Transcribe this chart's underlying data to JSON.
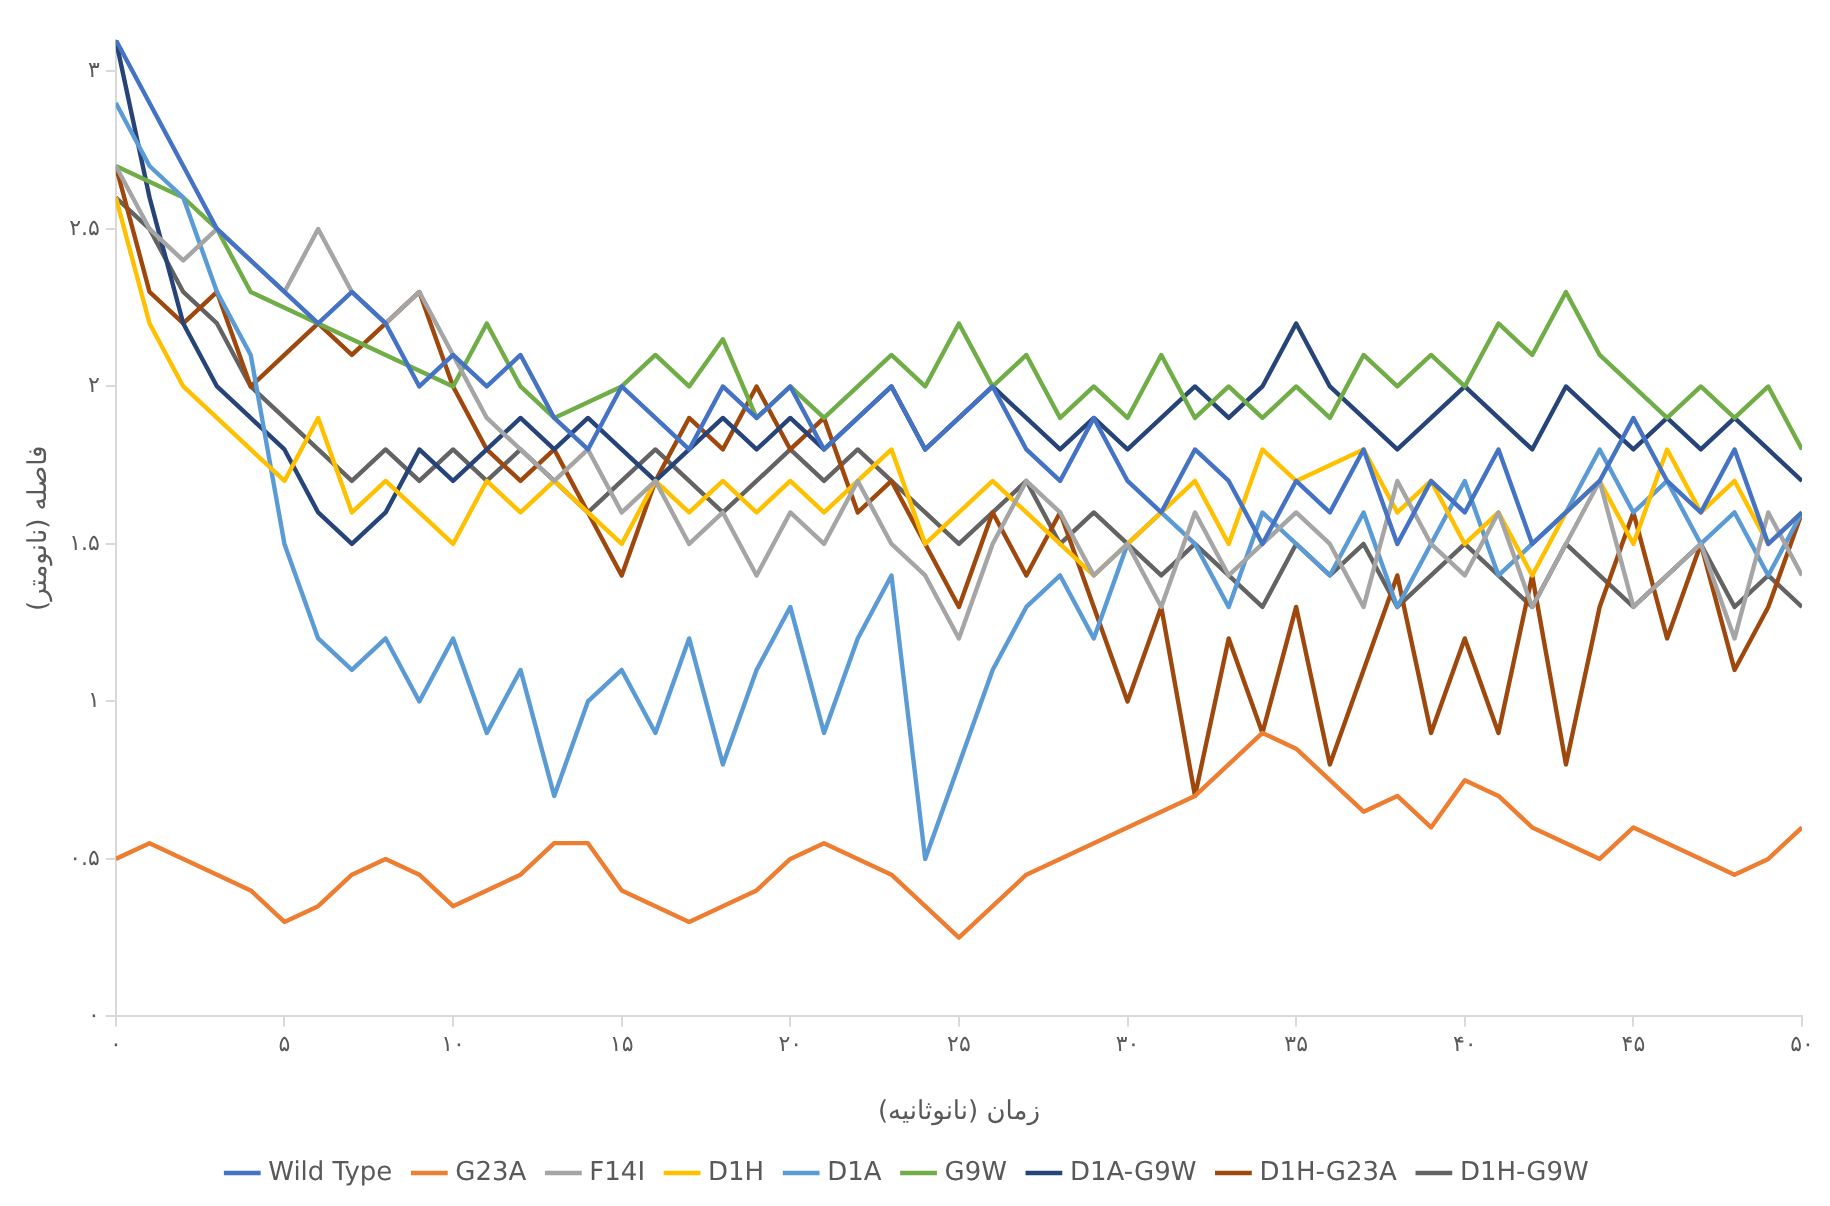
{
  "chart_data": {
    "type": "line",
    "xlabel": "زمان (نانوثانیه)",
    "ylabel": "فاصله (نانومتر)",
    "x": [
      0,
      1,
      2,
      3,
      4,
      5,
      6,
      7,
      8,
      9,
      10,
      11,
      12,
      13,
      14,
      15,
      16,
      17,
      18,
      19,
      20,
      21,
      22,
      23,
      24,
      25,
      26,
      27,
      28,
      29,
      30,
      31,
      32,
      33,
      34,
      35,
      36,
      37,
      38,
      39,
      40,
      41,
      42,
      43,
      44,
      45,
      46,
      47,
      48,
      49,
      50
    ],
    "xlim": [
      0,
      50
    ],
    "xticks": [
      {
        "value": 0,
        "label": "۰"
      },
      {
        "value": 5,
        "label": "۵"
      },
      {
        "value": 10,
        "label": "۱۰"
      },
      {
        "value": 15,
        "label": "۱۵"
      },
      {
        "value": 20,
        "label": "۲۰"
      },
      {
        "value": 25,
        "label": "۲۵"
      },
      {
        "value": 30,
        "label": "۳۰"
      },
      {
        "value": 35,
        "label": "۳۵"
      },
      {
        "value": 40,
        "label": "۴۰"
      },
      {
        "value": 45,
        "label": "۴۵"
      },
      {
        "value": 50,
        "label": "۵۰"
      }
    ],
    "ylim": [
      0,
      3.1
    ],
    "yticks": [
      {
        "value": 0,
        "label": "۰"
      },
      {
        "value": 0.5,
        "label": "۰.۵"
      },
      {
        "value": 1,
        "label": "۱"
      },
      {
        "value": 1.5,
        "label": "۱.۵"
      },
      {
        "value": 2,
        "label": "۲"
      },
      {
        "value": 2.5,
        "label": "۲.۵"
      },
      {
        "value": 3,
        "label": "۳"
      }
    ],
    "grid": false,
    "legend": "bottom",
    "marker": "none",
    "line_style": "solid",
    "series": [
      {
        "name": "Wild Type",
        "color": "#4472c4",
        "values": [
          3.1,
          2.9,
          2.7,
          2.5,
          2.4,
          2.3,
          2.2,
          2.3,
          2.2,
          2.0,
          2.1,
          2.0,
          2.1,
          1.9,
          1.8,
          2.0,
          1.9,
          1.8,
          2.0,
          1.9,
          2.0,
          1.8,
          1.9,
          2.0,
          1.8,
          1.9,
          2.0,
          1.8,
          1.7,
          1.9,
          1.7,
          1.6,
          1.8,
          1.7,
          1.5,
          1.7,
          1.6,
          1.8,
          1.5,
          1.7,
          1.6,
          1.8,
          1.5,
          1.6,
          1.7,
          1.9,
          1.7,
          1.6,
          1.8,
          1.5,
          1.6
        ]
      },
      {
        "name": "G23A",
        "color": "#ed7d31",
        "values": [
          0.5,
          0.55,
          0.5,
          0.45,
          0.4,
          0.3,
          0.35,
          0.45,
          0.5,
          0.45,
          0.35,
          0.4,
          0.45,
          0.55,
          0.55,
          0.4,
          0.35,
          0.3,
          0.35,
          0.4,
          0.5,
          0.55,
          0.5,
          0.45,
          0.35,
          0.25,
          0.35,
          0.45,
          0.5,
          0.55,
          0.6,
          0.65,
          0.7,
          0.8,
          0.9,
          0.85,
          0.75,
          0.65,
          0.7,
          0.6,
          0.75,
          0.7,
          0.6,
          0.55,
          0.5,
          0.6,
          0.55,
          0.5,
          0.45,
          0.5,
          0.6
        ]
      },
      {
        "name": "F14I",
        "color": "#a5a5a5",
        "values": [
          2.7,
          2.5,
          2.4,
          2.5,
          2.4,
          2.3,
          2.5,
          2.3,
          2.2,
          2.3,
          2.1,
          1.9,
          1.8,
          1.7,
          1.8,
          1.6,
          1.7,
          1.5,
          1.6,
          1.4,
          1.6,
          1.5,
          1.7,
          1.5,
          1.4,
          1.2,
          1.5,
          1.7,
          1.6,
          1.4,
          1.5,
          1.3,
          1.6,
          1.4,
          1.5,
          1.6,
          1.5,
          1.3,
          1.7,
          1.5,
          1.4,
          1.6,
          1.3,
          1.5,
          1.7,
          1.3,
          1.4,
          1.5,
          1.2,
          1.6,
          1.4
        ]
      },
      {
        "name": "D1H",
        "color": "#ffc000",
        "values": [
          2.6,
          2.2,
          2.0,
          1.9,
          1.8,
          1.7,
          1.9,
          1.6,
          1.7,
          1.6,
          1.5,
          1.7,
          1.6,
          1.7,
          1.6,
          1.5,
          1.7,
          1.6,
          1.7,
          1.6,
          1.7,
          1.6,
          1.7,
          1.8,
          1.5,
          1.6,
          1.7,
          1.6,
          1.5,
          1.4,
          1.5,
          1.6,
          1.7,
          1.5,
          1.8,
          1.7,
          1.75,
          1.8,
          1.6,
          1.7,
          1.5,
          1.6,
          1.4,
          1.6,
          1.7,
          1.5,
          1.8,
          1.6,
          1.7,
          1.5,
          1.6
        ]
      },
      {
        "name": "D1A",
        "color": "#5b9bd5",
        "values": [
          2.9,
          2.7,
          2.6,
          2.3,
          2.1,
          1.5,
          1.2,
          1.1,
          1.2,
          1.0,
          1.2,
          0.9,
          1.1,
          0.7,
          1.0,
          1.1,
          0.9,
          1.2,
          0.8,
          1.1,
          1.3,
          0.9,
          1.2,
          1.4,
          0.5,
          0.8,
          1.1,
          1.3,
          1.4,
          1.2,
          1.5,
          1.6,
          1.5,
          1.3,
          1.6,
          1.5,
          1.4,
          1.6,
          1.3,
          1.5,
          1.7,
          1.4,
          1.5,
          1.6,
          1.8,
          1.6,
          1.7,
          1.5,
          1.6,
          1.4,
          1.6
        ]
      },
      {
        "name": "G9W",
        "color": "#70ad47",
        "values": [
          2.7,
          2.65,
          2.6,
          2.5,
          2.3,
          2.25,
          2.2,
          2.15,
          2.1,
          2.05,
          2.0,
          2.2,
          2.0,
          1.9,
          1.95,
          2.0,
          2.1,
          2.0,
          2.15,
          1.9,
          2.0,
          1.9,
          2.0,
          2.1,
          2.0,
          2.2,
          2.0,
          2.1,
          1.9,
          2.0,
          1.9,
          2.1,
          1.9,
          2.0,
          1.9,
          2.0,
          1.9,
          2.1,
          2.0,
          2.1,
          2.0,
          2.2,
          2.1,
          2.3,
          2.1,
          2.0,
          1.9,
          2.0,
          1.9,
          2.0,
          1.8
        ]
      },
      {
        "name": "D1A-G9W",
        "color": "#264478",
        "values": [
          3.1,
          2.6,
          2.2,
          2.0,
          1.9,
          1.8,
          1.6,
          1.5,
          1.6,
          1.8,
          1.7,
          1.8,
          1.9,
          1.8,
          1.9,
          1.8,
          1.7,
          1.8,
          1.9,
          1.8,
          1.9,
          1.8,
          1.9,
          2.0,
          1.8,
          1.9,
          2.0,
          1.9,
          1.8,
          1.9,
          1.8,
          1.9,
          2.0,
          1.9,
          2.0,
          2.2,
          2.0,
          1.9,
          1.8,
          1.9,
          2.0,
          1.9,
          1.8,
          2.0,
          1.9,
          1.8,
          1.9,
          1.8,
          1.9,
          1.8,
          1.7
        ]
      },
      {
        "name": "D1H-G23A",
        "color": "#9e480e",
        "values": [
          2.7,
          2.3,
          2.2,
          2.3,
          2.0,
          2.1,
          2.2,
          2.1,
          2.2,
          2.3,
          2.0,
          1.8,
          1.7,
          1.8,
          1.6,
          1.4,
          1.7,
          1.9,
          1.8,
          2.0,
          1.8,
          1.9,
          1.6,
          1.7,
          1.5,
          1.3,
          1.6,
          1.4,
          1.6,
          1.3,
          1.0,
          1.3,
          0.7,
          1.2,
          0.9,
          1.3,
          0.8,
          1.1,
          1.4,
          0.9,
          1.2,
          0.9,
          1.4,
          0.8,
          1.3,
          1.6,
          1.2,
          1.5,
          1.1,
          1.3,
          1.6
        ]
      },
      {
        "name": "D1H-G9W",
        "color": "#636363",
        "values": [
          2.6,
          2.5,
          2.3,
          2.2,
          2.0,
          1.9,
          1.8,
          1.7,
          1.8,
          1.7,
          1.8,
          1.7,
          1.8,
          1.7,
          1.6,
          1.7,
          1.8,
          1.7,
          1.6,
          1.7,
          1.8,
          1.7,
          1.8,
          1.7,
          1.6,
          1.5,
          1.6,
          1.7,
          1.5,
          1.6,
          1.5,
          1.4,
          1.5,
          1.4,
          1.3,
          1.5,
          1.4,
          1.5,
          1.3,
          1.4,
          1.5,
          1.4,
          1.3,
          1.5,
          1.4,
          1.3,
          1.4,
          1.5,
          1.3,
          1.4,
          1.3
        ]
      }
    ]
  }
}
